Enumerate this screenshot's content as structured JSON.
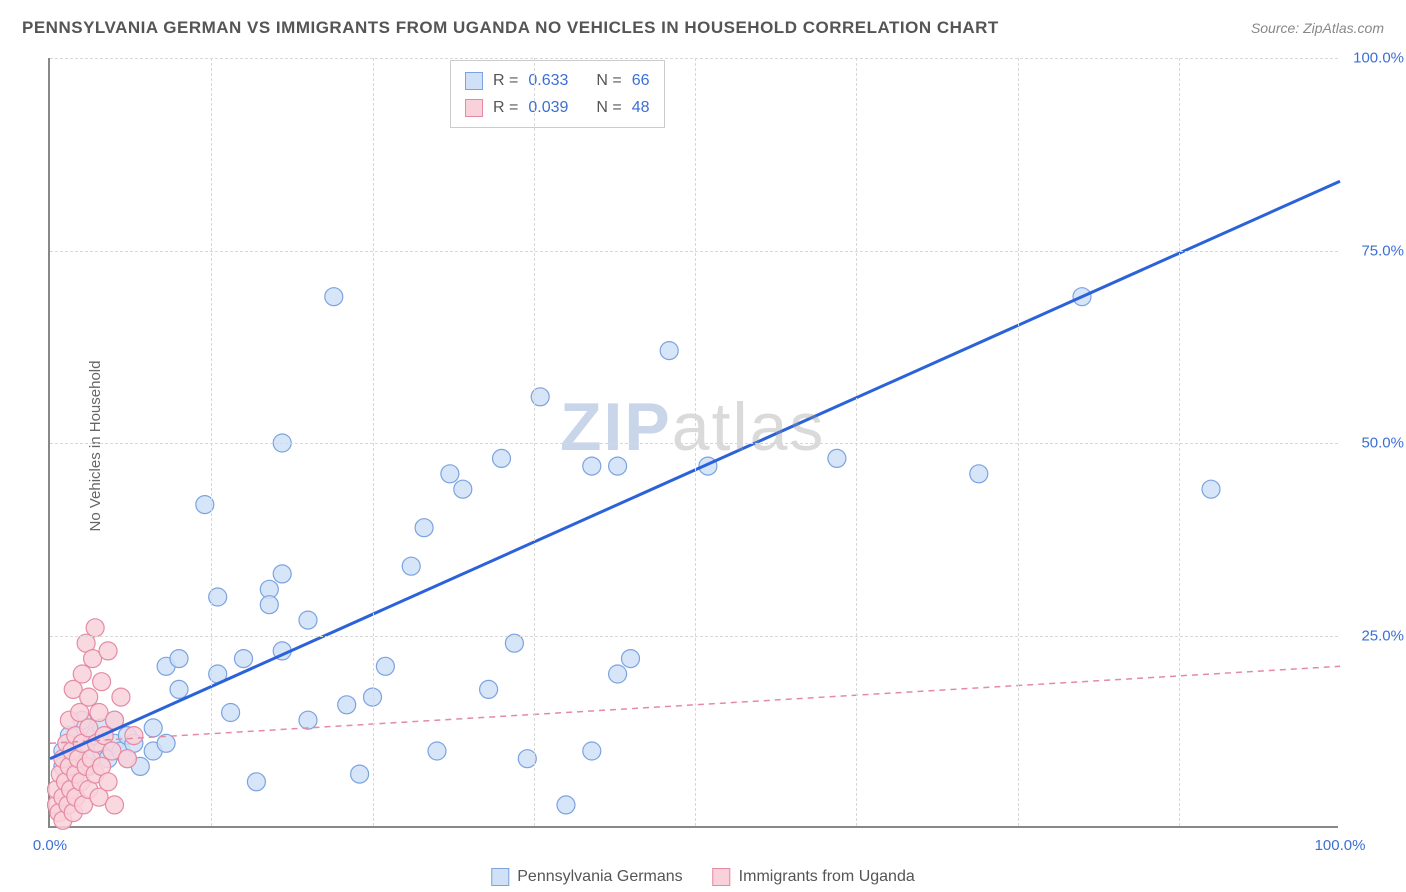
{
  "title": "PENNSYLVANIA GERMAN VS IMMIGRANTS FROM UGANDA NO VEHICLES IN HOUSEHOLD CORRELATION CHART",
  "source_label": "Source: ",
  "source_value": "ZipAtlas.com",
  "ylabel": "No Vehicles in Household",
  "watermark_a": "ZIP",
  "watermark_b": "atlas",
  "chart": {
    "type": "scatter",
    "xlim": [
      0,
      100
    ],
    "ylim": [
      0,
      100
    ],
    "xtick_labels": [
      "0.0%",
      "100.0%"
    ],
    "xtick_positions": [
      0,
      100
    ],
    "ytick_labels": [
      "25.0%",
      "50.0%",
      "75.0%",
      "100.0%"
    ],
    "ytick_positions": [
      25,
      50,
      75,
      100
    ],
    "grid_x_positions": [
      12.5,
      25,
      37.5,
      50,
      62.5,
      75,
      87.5
    ],
    "grid_color": "#d8d8d8",
    "background_color": "#ffffff",
    "marker_radius": 9,
    "marker_stroke_width": 1.2
  },
  "series": [
    {
      "name": "Pennsylvania Germans",
      "fill": "#cfe0f7",
      "stroke": "#7ba3e0",
      "trend_stroke": "#2b62d9",
      "trend_width": 3,
      "trend_dash": "none",
      "R": "0.633",
      "N": "66",
      "trend": {
        "x1": 0,
        "y1": 9,
        "x2": 100,
        "y2": 84
      },
      "points": [
        [
          1,
          10
        ],
        [
          1,
          8
        ],
        [
          1.5,
          12
        ],
        [
          2,
          9
        ],
        [
          2,
          7
        ],
        [
          2.5,
          11
        ],
        [
          2.5,
          14
        ],
        [
          3,
          8
        ],
        [
          3,
          10
        ],
        [
          3.5,
          12
        ],
        [
          4,
          10
        ],
        [
          4,
          13
        ],
        [
          4.5,
          9
        ],
        [
          5,
          11
        ],
        [
          5,
          14
        ],
        [
          5.5,
          10
        ],
        [
          6,
          12
        ],
        [
          6,
          9
        ],
        [
          6.5,
          11
        ],
        [
          7,
          8
        ],
        [
          8,
          10
        ],
        [
          8,
          13
        ],
        [
          9,
          11
        ],
        [
          9,
          21
        ],
        [
          10,
          18
        ],
        [
          10,
          22
        ],
        [
          12,
          42
        ],
        [
          13,
          20
        ],
        [
          13,
          30
        ],
        [
          14,
          15
        ],
        [
          15,
          22
        ],
        [
          16,
          6
        ],
        [
          17,
          31
        ],
        [
          17,
          29
        ],
        [
          18,
          33
        ],
        [
          18,
          23
        ],
        [
          18,
          50
        ],
        [
          20,
          27
        ],
        [
          20,
          14
        ],
        [
          22,
          69
        ],
        [
          23,
          16
        ],
        [
          24,
          7
        ],
        [
          25,
          17
        ],
        [
          26,
          21
        ],
        [
          28,
          34
        ],
        [
          29,
          39
        ],
        [
          30,
          10
        ],
        [
          31,
          46
        ],
        [
          32,
          44
        ],
        [
          34,
          18
        ],
        [
          35,
          48
        ],
        [
          36,
          24
        ],
        [
          37,
          9
        ],
        [
          38,
          56
        ],
        [
          40,
          3
        ],
        [
          42,
          47
        ],
        [
          42,
          10
        ],
        [
          44,
          47
        ],
        [
          44,
          20
        ],
        [
          45,
          22
        ],
        [
          48,
          62
        ],
        [
          51,
          47
        ],
        [
          61,
          48
        ],
        [
          72,
          46
        ],
        [
          80,
          69
        ],
        [
          90,
          44
        ]
      ]
    },
    {
      "name": "Immigrants from Uganda",
      "fill": "#f9d1db",
      "stroke": "#e48ba3",
      "trend_stroke": "#e48ba3",
      "trend_width": 1.5,
      "trend_dash": "6 5",
      "R": "0.039",
      "N": "48",
      "trend": {
        "x1": 0,
        "y1": 11,
        "x2": 100,
        "y2": 21
      },
      "points": [
        [
          0.5,
          3
        ],
        [
          0.5,
          5
        ],
        [
          0.7,
          2
        ],
        [
          0.8,
          7
        ],
        [
          1,
          4
        ],
        [
          1,
          1
        ],
        [
          1,
          9
        ],
        [
          1.2,
          6
        ],
        [
          1.3,
          11
        ],
        [
          1.4,
          3
        ],
        [
          1.5,
          8
        ],
        [
          1.5,
          14
        ],
        [
          1.6,
          5
        ],
        [
          1.7,
          10
        ],
        [
          1.8,
          2
        ],
        [
          1.8,
          18
        ],
        [
          2,
          7
        ],
        [
          2,
          12
        ],
        [
          2,
          4
        ],
        [
          2.2,
          9
        ],
        [
          2.3,
          15
        ],
        [
          2.4,
          6
        ],
        [
          2.5,
          11
        ],
        [
          2.5,
          20
        ],
        [
          2.6,
          3
        ],
        [
          2.8,
          8
        ],
        [
          2.8,
          24
        ],
        [
          3,
          13
        ],
        [
          3,
          5
        ],
        [
          3,
          17
        ],
        [
          3.2,
          9
        ],
        [
          3.3,
          22
        ],
        [
          3.5,
          7
        ],
        [
          3.5,
          26
        ],
        [
          3.6,
          11
        ],
        [
          3.8,
          4
        ],
        [
          3.8,
          15
        ],
        [
          4,
          19
        ],
        [
          4,
          8
        ],
        [
          4.2,
          12
        ],
        [
          4.5,
          6
        ],
        [
          4.5,
          23
        ],
        [
          4.8,
          10
        ],
        [
          5,
          14
        ],
        [
          5,
          3
        ],
        [
          5.5,
          17
        ],
        [
          6,
          9
        ],
        [
          6.5,
          12
        ]
      ]
    }
  ],
  "legend": {
    "R_label": "R =",
    "N_label": "N ="
  }
}
